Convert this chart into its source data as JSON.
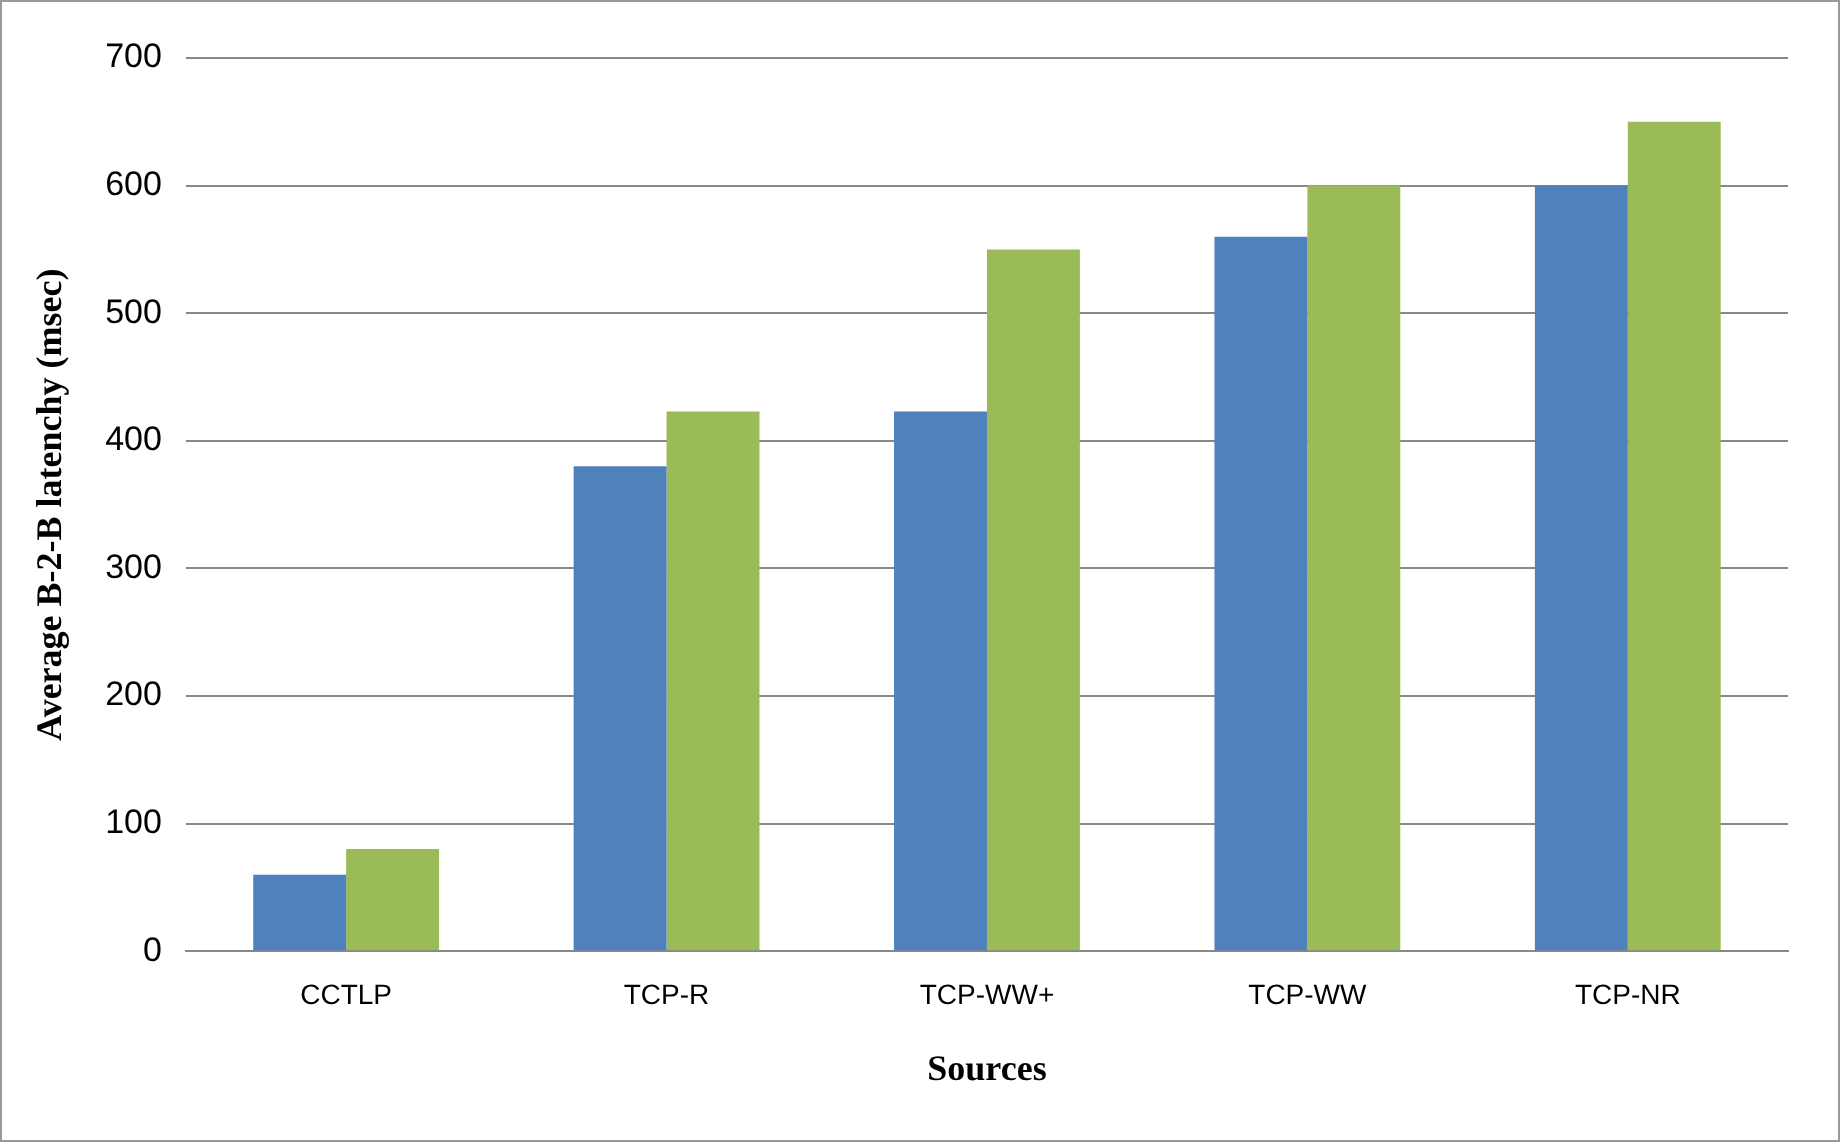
{
  "chart_data": {
    "type": "bar",
    "xlabel": "Sources",
    "ylabel": "Average B-2-B latenchy (msec)",
    "categories": [
      "CCTLP",
      "TCP-R",
      "TCP-WW+",
      "TCP-WW",
      "TCP-NR"
    ],
    "series": [
      {
        "color": "#4f81bd",
        "values": [
          60,
          380,
          423,
          560,
          600
        ]
      },
      {
        "color": "#9bbb59",
        "values": [
          80,
          423,
          550,
          600,
          650
        ]
      }
    ],
    "ylim": [
      0,
      700
    ],
    "yticks": [
      0,
      100,
      200,
      300,
      400,
      500,
      600,
      700
    ],
    "grid": "y",
    "legend": false
  }
}
